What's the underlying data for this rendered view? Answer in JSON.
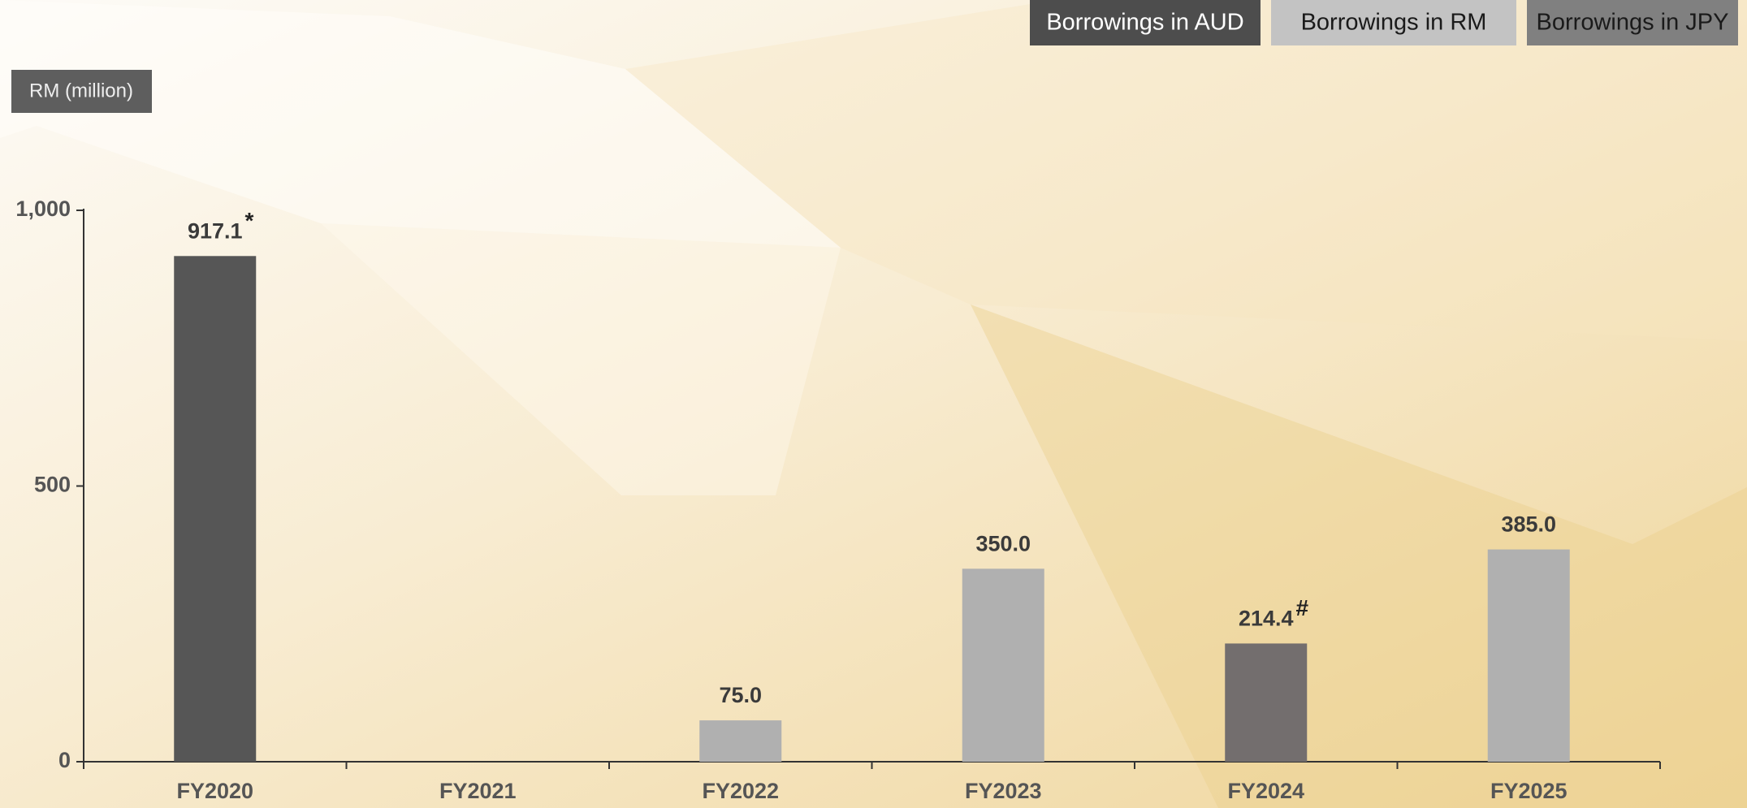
{
  "chart_data": {
    "type": "bar",
    "legend_position": "top-right",
    "y_label": "RM (million)",
    "categories": [
      "FY2020",
      "FY2021",
      "FY2022",
      "FY2023",
      "FY2024",
      "FY2025"
    ],
    "series": [
      {
        "name": "Borrowings in AUD",
        "color": "#565656",
        "values": [
          917.1,
          null,
          null,
          null,
          null,
          null
        ],
        "value_labels": [
          "917.1",
          null,
          null,
          null,
          null,
          null
        ]
      },
      {
        "name": "Borrowings in RM",
        "color": "#b0b0b0",
        "values": [
          null,
          null,
          75,
          350,
          null,
          385
        ],
        "value_labels": [
          null,
          null,
          "75.0",
          "350.0",
          null,
          "385.0"
        ]
      },
      {
        "name": "Borrowings in JPY",
        "color": "#736e6e",
        "values": [
          null,
          null,
          null,
          null,
          214.4,
          null
        ],
        "value_labels": [
          null,
          null,
          null,
          null,
          "214.4",
          null
        ]
      }
    ],
    "legend_colors": [
      "#4d4d4d",
      "#c3c3c3",
      "#808080"
    ],
    "annotations": [
      "*",
      "#"
    ],
    "ylim": [
      0,
      1000
    ],
    "yticks": [
      0,
      500,
      {
        "value": 1000,
        "label": "1,000"
      }
    ]
  }
}
